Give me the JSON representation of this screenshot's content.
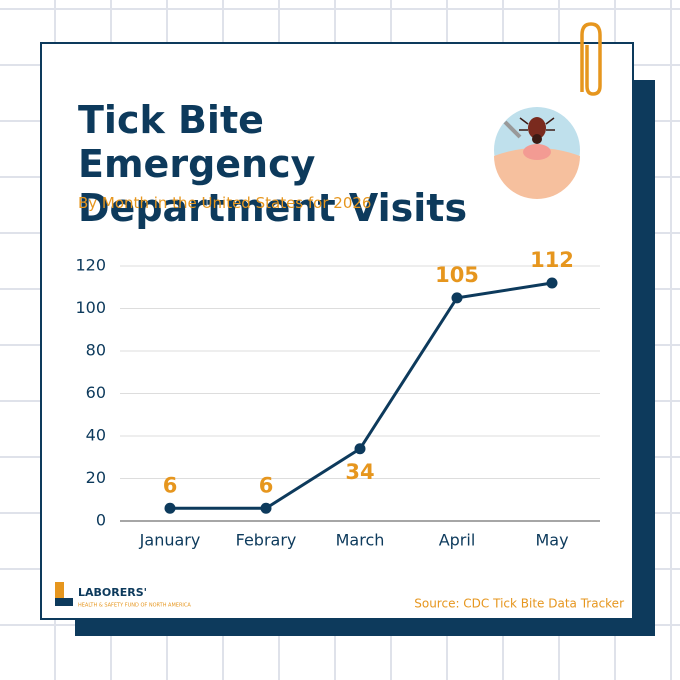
{
  "chart_data": {
    "type": "line",
    "title": "Tick Bite Emergency Department Visits",
    "subtitle": "By Month in the United States for 2026",
    "categories": [
      "January",
      "Febrary",
      "March",
      "April",
      "May"
    ],
    "values": [
      6,
      6,
      34,
      105,
      112
    ],
    "color": "#0d3a5c",
    "label_color": "#e6961e",
    "ylim": [
      0,
      120
    ],
    "yticks": [
      0,
      20,
      40,
      60,
      80,
      100,
      120
    ],
    "grid": true,
    "source": "Source: CDC Tick Bite Data Tracker"
  },
  "logo": {
    "name": "LABORERS'",
    "tagline": "HEALTH & SAFETY FUND OF NORTH AMERICA"
  }
}
